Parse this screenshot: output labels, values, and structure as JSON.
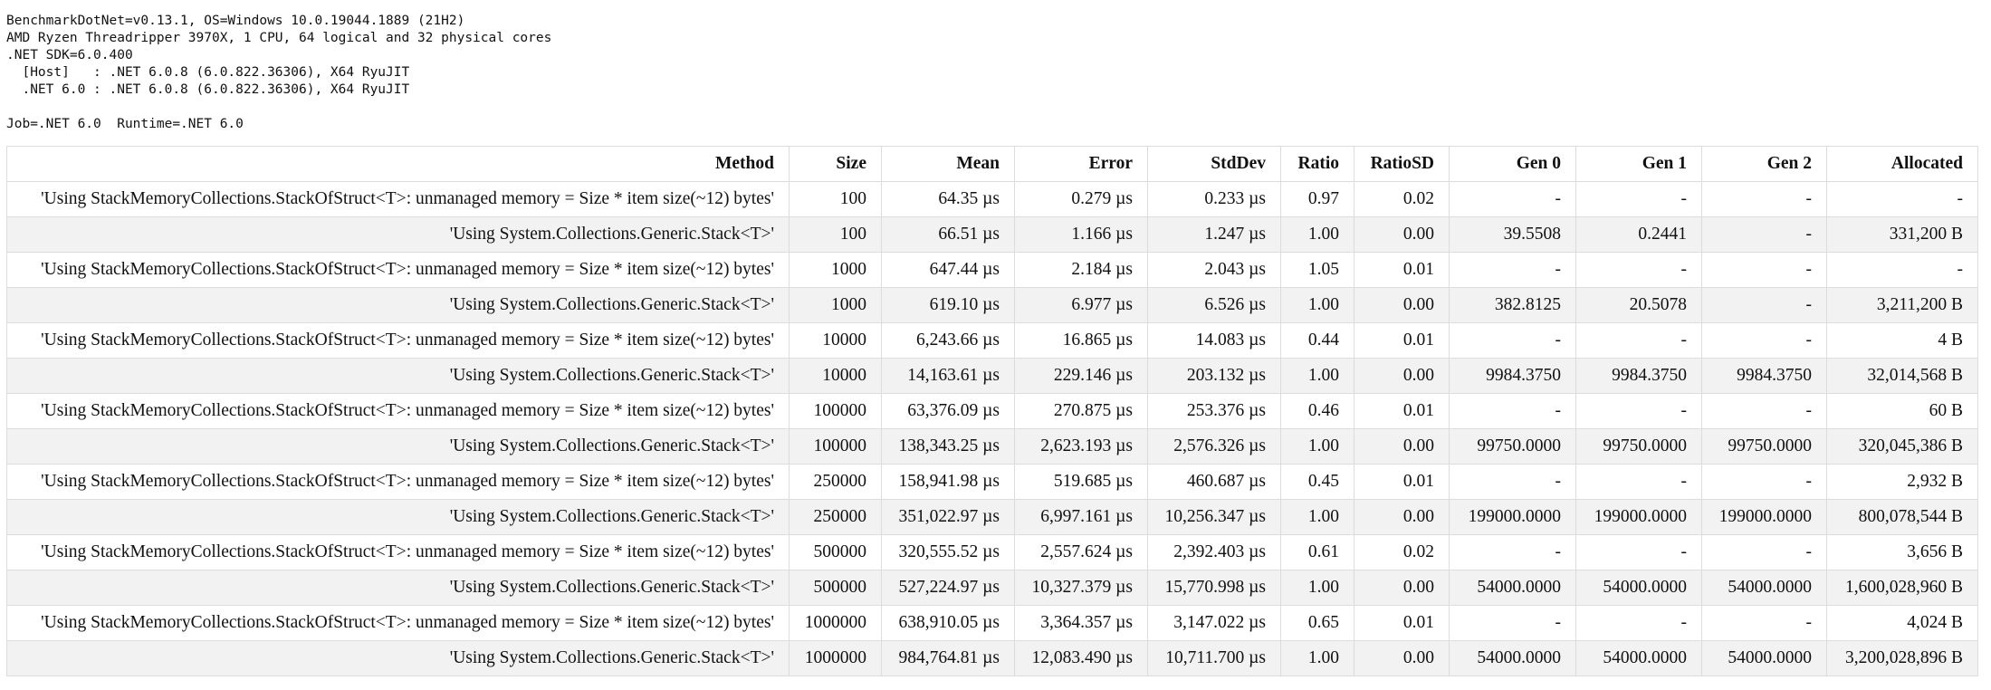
{
  "environment": {
    "lines": [
      "BenchmarkDotNet=v0.13.1, OS=Windows 10.0.19044.1889 (21H2)",
      "AMD Ryzen Threadripper 3970X, 1 CPU, 64 logical and 32 physical cores",
      ".NET SDK=6.0.400",
      "  [Host]   : .NET 6.0.8 (6.0.822.36306), X64 RyuJIT",
      "  .NET 6.0 : .NET 6.0.8 (6.0.822.36306), X64 RyuJIT"
    ],
    "job": "Job=.NET 6.0  Runtime=.NET 6.0"
  },
  "table": {
    "columns": [
      "Method",
      "Size",
      "Mean",
      "Error",
      "StdDev",
      "Ratio",
      "RatioSD",
      "Gen 0",
      "Gen 1",
      "Gen 2",
      "Allocated"
    ],
    "rows": [
      [
        "'Using StackMemoryCollections.StackOfStruct<T>: unmanaged memory = Size * item size(~12) bytes'",
        "100",
        "64.35 µs",
        "0.279 µs",
        "0.233 µs",
        "0.97",
        "0.02",
        "-",
        "-",
        "-",
        "-"
      ],
      [
        "'Using System.Collections.Generic.Stack<T>'",
        "100",
        "66.51 µs",
        "1.166 µs",
        "1.247 µs",
        "1.00",
        "0.00",
        "39.5508",
        "0.2441",
        "-",
        "331,200 B"
      ],
      [
        "'Using StackMemoryCollections.StackOfStruct<T>: unmanaged memory = Size * item size(~12) bytes'",
        "1000",
        "647.44 µs",
        "2.184 µs",
        "2.043 µs",
        "1.05",
        "0.01",
        "-",
        "-",
        "-",
        "-"
      ],
      [
        "'Using System.Collections.Generic.Stack<T>'",
        "1000",
        "619.10 µs",
        "6.977 µs",
        "6.526 µs",
        "1.00",
        "0.00",
        "382.8125",
        "20.5078",
        "-",
        "3,211,200 B"
      ],
      [
        "'Using StackMemoryCollections.StackOfStruct<T>: unmanaged memory = Size * item size(~12) bytes'",
        "10000",
        "6,243.66 µs",
        "16.865 µs",
        "14.083 µs",
        "0.44",
        "0.01",
        "-",
        "-",
        "-",
        "4 B"
      ],
      [
        "'Using System.Collections.Generic.Stack<T>'",
        "10000",
        "14,163.61 µs",
        "229.146 µs",
        "203.132 µs",
        "1.00",
        "0.00",
        "9984.3750",
        "9984.3750",
        "9984.3750",
        "32,014,568 B"
      ],
      [
        "'Using StackMemoryCollections.StackOfStruct<T>: unmanaged memory = Size * item size(~12) bytes'",
        "100000",
        "63,376.09 µs",
        "270.875 µs",
        "253.376 µs",
        "0.46",
        "0.01",
        "-",
        "-",
        "-",
        "60 B"
      ],
      [
        "'Using System.Collections.Generic.Stack<T>'",
        "100000",
        "138,343.25 µs",
        "2,623.193 µs",
        "2,576.326 µs",
        "1.00",
        "0.00",
        "99750.0000",
        "99750.0000",
        "99750.0000",
        "320,045,386 B"
      ],
      [
        "'Using StackMemoryCollections.StackOfStruct<T>: unmanaged memory = Size * item size(~12) bytes'",
        "250000",
        "158,941.98 µs",
        "519.685 µs",
        "460.687 µs",
        "0.45",
        "0.01",
        "-",
        "-",
        "-",
        "2,932 B"
      ],
      [
        "'Using System.Collections.Generic.Stack<T>'",
        "250000",
        "351,022.97 µs",
        "6,997.161 µs",
        "10,256.347 µs",
        "1.00",
        "0.00",
        "199000.0000",
        "199000.0000",
        "199000.0000",
        "800,078,544 B"
      ],
      [
        "'Using StackMemoryCollections.StackOfStruct<T>: unmanaged memory = Size * item size(~12) bytes'",
        "500000",
        "320,555.52 µs",
        "2,557.624 µs",
        "2,392.403 µs",
        "0.61",
        "0.02",
        "-",
        "-",
        "-",
        "3,656 B"
      ],
      [
        "'Using System.Collections.Generic.Stack<T>'",
        "500000",
        "527,224.97 µs",
        "10,327.379 µs",
        "15,770.998 µs",
        "1.00",
        "0.00",
        "54000.0000",
        "54000.0000",
        "54000.0000",
        "1,600,028,960 B"
      ],
      [
        "'Using StackMemoryCollections.StackOfStruct<T>: unmanaged memory = Size * item size(~12) bytes'",
        "1000000",
        "638,910.05 µs",
        "3,364.357 µs",
        "3,147.022 µs",
        "0.65",
        "0.01",
        "-",
        "-",
        "-",
        "4,024 B"
      ],
      [
        "'Using System.Collections.Generic.Stack<T>'",
        "1000000",
        "984,764.81 µs",
        "12,083.490 µs",
        "10,711.700 µs",
        "1.00",
        "0.00",
        "54000.0000",
        "54000.0000",
        "54000.0000",
        "3,200,028,896 B"
      ]
    ]
  }
}
